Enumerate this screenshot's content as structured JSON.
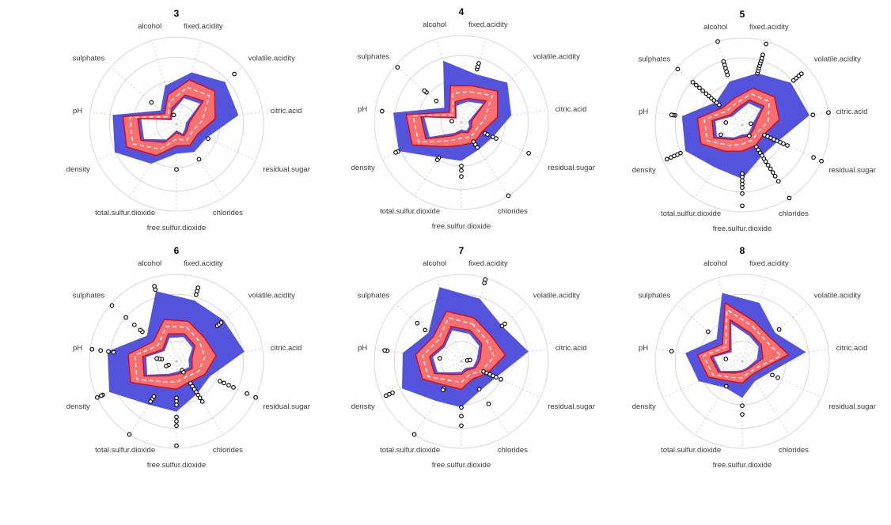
{
  "chart_data": {
    "type": "radar",
    "subtype": "faceted-radar-boxplot",
    "description": "Six radar (spider) boxplot facets of wine properties grouped by quality score. Blue band = whisker range, red band = interquartile range with red border, white dashed line = median, open circles = outliers. Values are fractions of the outer grid circle radius.",
    "axes": [
      "fixed.acidity",
      "volatile.acidity",
      "citric.acid",
      "residual.sugar",
      "chlorides",
      "free.sulfur.dioxide",
      "total.sulfur.dioxide",
      "density",
      "pH",
      "sulphates",
      "alcohol"
    ],
    "axis_start_deg": 16.36,
    "rings": [
      0.23,
      0.5,
      0.77,
      1.0
    ],
    "grid": true,
    "legend": false,
    "colors": {
      "whisker_band": "#5254dd",
      "iqr_band": "#f87070",
      "iqr_border": "#e60000",
      "median_line": "#ffffff",
      "grid_ring": "#d8d8d8",
      "spoke": "#cfcfcf",
      "outlier_stroke": "#000000",
      "outlier_fill": "#ffffff",
      "axis_label": "#3b3b3b",
      "title": "#000000"
    },
    "panels": [
      {
        "title": "3",
        "upper": [
          0.62,
          0.74,
          0.72,
          0.38,
          0.38,
          0.34,
          0.54,
          0.78,
          0.74,
          0.24,
          0.46
        ],
        "q3": [
          0.53,
          0.58,
          0.45,
          0.27,
          0.29,
          0.25,
          0.43,
          0.63,
          0.62,
          0.18,
          0.35
        ],
        "median": [
          0.44,
          0.5,
          0.3,
          0.2,
          0.22,
          0.17,
          0.34,
          0.55,
          0.54,
          0.13,
          0.27
        ],
        "q1": [
          0.35,
          0.41,
          0.15,
          0.14,
          0.16,
          0.1,
          0.25,
          0.45,
          0.45,
          0.09,
          0.19
        ],
        "lower": [
          0.31,
          0.36,
          0.11,
          0.11,
          0.13,
          0.07,
          0.21,
          0.41,
          0.41,
          0.07,
          0.15
        ],
        "outliers": [
          [
            1,
            0.88
          ],
          [
            3,
            0.4
          ],
          [
            4,
            0.48
          ],
          [
            5,
            0.52
          ],
          [
            9,
            0.38
          ],
          [
            10,
            0.11
          ]
        ]
      },
      {
        "title": "4",
        "upper": [
          0.58,
          0.7,
          0.58,
          0.4,
          0.37,
          0.44,
          0.48,
          0.79,
          0.79,
          0.26,
          0.74
        ],
        "q3": [
          0.44,
          0.55,
          0.42,
          0.26,
          0.27,
          0.26,
          0.33,
          0.62,
          0.64,
          0.18,
          0.44
        ],
        "median": [
          0.37,
          0.47,
          0.27,
          0.19,
          0.2,
          0.18,
          0.25,
          0.54,
          0.56,
          0.13,
          0.35
        ],
        "q1": [
          0.29,
          0.38,
          0.12,
          0.13,
          0.14,
          0.11,
          0.18,
          0.45,
          0.47,
          0.09,
          0.25
        ],
        "lower": [
          0.25,
          0.33,
          0.08,
          0.1,
          0.11,
          0.08,
          0.14,
          0.4,
          0.43,
          0.07,
          0.2
        ],
        "outliers": [
          [
            0,
            0.64
          ],
          [
            0,
            0.67
          ],
          [
            0,
            0.71
          ],
          [
            9,
            0.38
          ],
          [
            9,
            0.53
          ],
          [
            9,
            0.56
          ],
          [
            9,
            0.97
          ],
          [
            8,
            0.11
          ],
          [
            8,
            0.92
          ],
          [
            3,
            0.3
          ],
          [
            3,
            0.33
          ],
          [
            3,
            0.4
          ],
          [
            3,
            0.44
          ],
          [
            3,
            0.85
          ],
          [
            4,
            0.26
          ],
          [
            4,
            0.3
          ],
          [
            4,
            0.34
          ],
          [
            4,
            1.0
          ],
          [
            5,
            0.5
          ],
          [
            5,
            0.55
          ],
          [
            5,
            0.62
          ],
          [
            6,
            0.48
          ],
          [
            6,
            0.51
          ],
          [
            7,
            0.8
          ],
          [
            7,
            0.83
          ]
        ]
      },
      {
        "title": "5",
        "upper": [
          0.62,
          0.74,
          0.78,
          0.45,
          0.42,
          0.62,
          0.58,
          0.72,
          0.7,
          0.4,
          0.52
        ],
        "q3": [
          0.44,
          0.49,
          0.43,
          0.27,
          0.28,
          0.3,
          0.36,
          0.52,
          0.52,
          0.3,
          0.32
        ],
        "median": [
          0.37,
          0.41,
          0.3,
          0.2,
          0.21,
          0.22,
          0.28,
          0.44,
          0.44,
          0.24,
          0.26
        ],
        "q1": [
          0.3,
          0.33,
          0.16,
          0.14,
          0.15,
          0.14,
          0.2,
          0.36,
          0.35,
          0.18,
          0.2
        ],
        "lower": [
          0.26,
          0.28,
          0.12,
          0.11,
          0.12,
          0.11,
          0.17,
          0.32,
          0.31,
          0.15,
          0.16
        ],
        "outliers": [
          [
            0,
            0.62
          ],
          [
            0,
            0.65
          ],
          [
            0,
            0.68
          ],
          [
            0,
            0.71
          ],
          [
            0,
            0.74
          ],
          [
            0,
            0.77
          ],
          [
            0,
            0.8
          ],
          [
            0,
            0.84
          ],
          [
            0,
            0.97
          ],
          [
            1,
            0.78
          ],
          [
            1,
            0.82
          ],
          [
            1,
            0.86
          ],
          [
            1,
            0.9
          ],
          [
            2,
            0.1
          ],
          [
            2,
            0.82
          ],
          [
            2,
            1.0
          ],
          [
            3,
            0.28
          ],
          [
            3,
            0.32
          ],
          [
            3,
            0.36
          ],
          [
            3,
            0.4
          ],
          [
            3,
            0.44
          ],
          [
            3,
            0.48
          ],
          [
            3,
            0.52
          ],
          [
            3,
            0.57
          ],
          [
            3,
            0.9
          ],
          [
            3,
            1.0
          ],
          [
            4,
            0.15
          ],
          [
            4,
            0.3
          ],
          [
            4,
            0.34
          ],
          [
            4,
            0.38
          ],
          [
            4,
            0.42
          ],
          [
            4,
            0.46
          ],
          [
            4,
            0.5
          ],
          [
            4,
            0.55
          ],
          [
            4,
            0.6
          ],
          [
            4,
            0.65
          ],
          [
            4,
            0.7
          ],
          [
            4,
            0.77
          ],
          [
            4,
            1.0
          ],
          [
            5,
            0.56
          ],
          [
            5,
            0.6
          ],
          [
            5,
            0.64
          ],
          [
            5,
            0.68
          ],
          [
            5,
            0.72
          ],
          [
            5,
            0.79
          ],
          [
            5,
            0.93
          ],
          [
            7,
            0.27
          ],
          [
            7,
            0.78
          ],
          [
            7,
            0.82
          ],
          [
            7,
            0.86
          ],
          [
            7,
            0.9
          ],
          [
            7,
            0.95
          ],
          [
            8,
            0.19
          ],
          [
            8,
            0.78
          ],
          [
            8,
            0.8
          ],
          [
            8,
            0.82
          ],
          [
            9,
            0.35
          ],
          [
            9,
            0.39
          ],
          [
            9,
            0.43
          ],
          [
            9,
            0.47
          ],
          [
            9,
            0.51
          ],
          [
            9,
            0.55
          ],
          [
            9,
            0.6
          ],
          [
            9,
            0.65
          ],
          [
            9,
            0.7
          ],
          [
            9,
            0.75
          ],
          [
            9,
            0.98
          ],
          [
            10,
            0.6
          ],
          [
            10,
            0.64
          ],
          [
            10,
            0.68
          ],
          [
            10,
            0.72
          ],
          [
            10,
            0.76
          ],
          [
            10,
            1.0
          ]
        ]
      },
      {
        "title": "6",
        "upper": [
          0.73,
          0.72,
          0.79,
          0.42,
          0.44,
          0.58,
          0.59,
          0.85,
          0.8,
          0.45,
          0.84
        ],
        "q3": [
          0.48,
          0.42,
          0.46,
          0.36,
          0.28,
          0.32,
          0.35,
          0.58,
          0.56,
          0.35,
          0.5
        ],
        "median": [
          0.41,
          0.35,
          0.33,
          0.28,
          0.21,
          0.24,
          0.28,
          0.5,
          0.48,
          0.28,
          0.42
        ],
        "q1": [
          0.33,
          0.28,
          0.18,
          0.2,
          0.15,
          0.15,
          0.2,
          0.41,
          0.39,
          0.21,
          0.33
        ],
        "lower": [
          0.29,
          0.24,
          0.14,
          0.16,
          0.12,
          0.12,
          0.17,
          0.37,
          0.35,
          0.18,
          0.28
        ],
        "outliers": [
          [
            0,
            0.8
          ],
          [
            0,
            0.84
          ],
          [
            0,
            0.88
          ],
          [
            1,
            0.62
          ],
          [
            1,
            0.65
          ],
          [
            1,
            0.68
          ],
          [
            3,
            0.55
          ],
          [
            3,
            0.6
          ],
          [
            3,
            0.66
          ],
          [
            3,
            0.72
          ],
          [
            3,
            0.89
          ],
          [
            3,
            1.0
          ],
          [
            4,
            0.12
          ],
          [
            4,
            0.15
          ],
          [
            4,
            0.3
          ],
          [
            4,
            0.34
          ],
          [
            4,
            0.38
          ],
          [
            4,
            0.42
          ],
          [
            4,
            0.46
          ],
          [
            4,
            0.5
          ],
          [
            4,
            0.55
          ],
          [
            5,
            0.42
          ],
          [
            5,
            0.46
          ],
          [
            5,
            0.5
          ],
          [
            5,
            0.64
          ],
          [
            5,
            0.69
          ],
          [
            5,
            0.74
          ],
          [
            5,
            0.97
          ],
          [
            6,
            0.48
          ],
          [
            6,
            0.52
          ],
          [
            6,
            0.55
          ],
          [
            6,
            1.0
          ],
          [
            7,
            0.1
          ],
          [
            7,
            0.13
          ],
          [
            7,
            0.93
          ],
          [
            7,
            0.95
          ],
          [
            7,
            1.0
          ],
          [
            8,
            0.17
          ],
          [
            8,
            0.2
          ],
          [
            8,
            0.23
          ],
          [
            8,
            0.73
          ],
          [
            8,
            0.79
          ],
          [
            8,
            0.88
          ],
          [
            8,
            0.98
          ],
          [
            9,
            0.52
          ],
          [
            9,
            0.55
          ],
          [
            9,
            0.64
          ],
          [
            9,
            0.77
          ],
          [
            9,
            0.98
          ],
          [
            10,
            0.86
          ],
          [
            10,
            0.9
          ]
        ]
      },
      {
        "title": "7",
        "upper": [
          0.75,
          0.62,
          0.78,
          0.44,
          0.4,
          0.53,
          0.54,
          0.75,
          0.68,
          0.5,
          0.89
        ],
        "q3": [
          0.52,
          0.45,
          0.51,
          0.33,
          0.24,
          0.32,
          0.33,
          0.49,
          0.53,
          0.43,
          0.6
        ],
        "median": [
          0.45,
          0.38,
          0.38,
          0.26,
          0.18,
          0.24,
          0.26,
          0.42,
          0.45,
          0.36,
          0.52
        ],
        "q1": [
          0.37,
          0.31,
          0.22,
          0.18,
          0.12,
          0.15,
          0.18,
          0.34,
          0.37,
          0.28,
          0.42
        ],
        "lower": [
          0.33,
          0.27,
          0.18,
          0.15,
          0.09,
          0.12,
          0.15,
          0.3,
          0.33,
          0.25,
          0.37
        ],
        "outliers": [
          [
            0,
            0.94
          ],
          [
            0,
            0.98
          ],
          [
            1,
            0.62
          ],
          [
            1,
            0.66
          ],
          [
            2,
            0.07
          ],
          [
            2,
            0.1
          ],
          [
            3,
            0.28
          ],
          [
            3,
            0.32
          ],
          [
            3,
            0.36
          ],
          [
            3,
            0.4
          ],
          [
            3,
            0.44
          ],
          [
            3,
            0.5
          ],
          [
            4,
            0.38
          ],
          [
            4,
            0.58
          ],
          [
            5,
            0.53
          ],
          [
            5,
            0.63
          ],
          [
            5,
            0.74
          ],
          [
            6,
            0.37
          ],
          [
            6,
            0.39
          ],
          [
            6,
            1.0
          ],
          [
            7,
            0.87
          ],
          [
            7,
            0.91
          ],
          [
            7,
            0.95
          ],
          [
            8,
            0.25
          ],
          [
            8,
            0.86
          ],
          [
            8,
            0.89
          ],
          [
            9,
            0.55
          ],
          [
            9,
            0.67
          ]
        ]
      },
      {
        "title": "8",
        "upper": [
          0.7,
          0.5,
          0.74,
          0.33,
          0.27,
          0.42,
          0.36,
          0.55,
          0.66,
          0.39,
          0.82
        ],
        "q3": [
          0.48,
          0.42,
          0.54,
          0.23,
          0.19,
          0.25,
          0.27,
          0.43,
          0.52,
          0.3,
          0.7
        ],
        "median": [
          0.42,
          0.36,
          0.45,
          0.18,
          0.15,
          0.19,
          0.22,
          0.37,
          0.45,
          0.25,
          0.62
        ],
        "q1": [
          0.34,
          0.29,
          0.24,
          0.13,
          0.11,
          0.12,
          0.16,
          0.3,
          0.37,
          0.19,
          0.5
        ],
        "lower": [
          0.3,
          0.25,
          0.17,
          0.1,
          0.09,
          0.1,
          0.13,
          0.27,
          0.33,
          0.16,
          0.45
        ],
        "outliers": [
          [
            1,
            0.56
          ],
          [
            3,
            0.38
          ],
          [
            3,
            0.45
          ],
          [
            5,
            0.51
          ],
          [
            5,
            0.61
          ],
          [
            6,
            0.34
          ],
          [
            8,
            0.19
          ],
          [
            8,
            0.82
          ],
          [
            9,
            0.52
          ]
        ]
      }
    ]
  }
}
